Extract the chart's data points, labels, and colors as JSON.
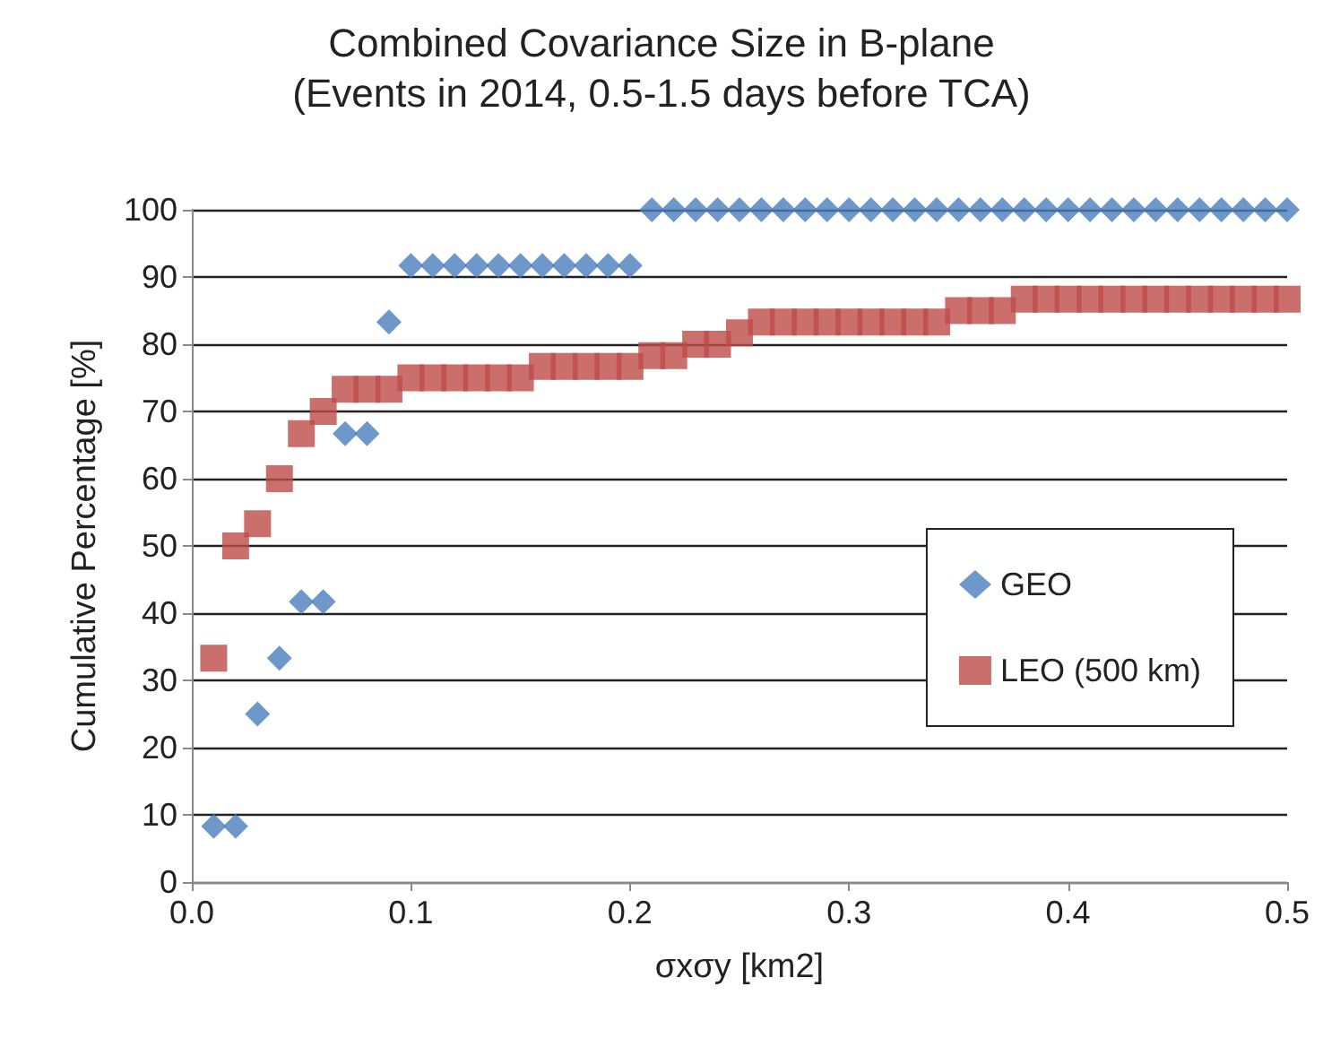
{
  "chart_data": {
    "type": "scatter",
    "title": "Combined Covariance Size in B-plane",
    "subtitle": "(Events in 2014, 0.5-1.5 days before TCA)",
    "xlabel": "σxσy [km2]",
    "ylabel": "Cumulative Percentage [%]",
    "x": [
      0.01,
      0.02,
      0.03,
      0.04,
      0.05,
      0.06,
      0.07,
      0.08,
      0.09,
      0.1,
      0.11,
      0.12,
      0.13,
      0.14,
      0.15,
      0.16,
      0.17,
      0.18,
      0.19,
      0.2,
      0.21,
      0.22,
      0.23,
      0.24,
      0.25,
      0.26,
      0.27,
      0.28,
      0.29,
      0.3,
      0.31,
      0.32,
      0.33,
      0.34,
      0.35,
      0.36,
      0.37,
      0.38,
      0.39,
      0.4,
      0.41,
      0.42,
      0.43,
      0.44,
      0.45,
      0.46,
      0.47,
      0.48,
      0.49,
      0.5
    ],
    "series": [
      {
        "name": "GEO",
        "color": "#4a7ebb",
        "marker": "diamond",
        "values": [
          8.3,
          8.3,
          25,
          33.3,
          41.7,
          41.7,
          66.7,
          66.7,
          83.3,
          91.7,
          91.7,
          91.7,
          91.7,
          91.7,
          91.7,
          91.7,
          91.7,
          91.7,
          91.7,
          91.7,
          100,
          100,
          100,
          100,
          100,
          100,
          100,
          100,
          100,
          100,
          100,
          100,
          100,
          100,
          100,
          100,
          100,
          100,
          100,
          100,
          100,
          100,
          100,
          100,
          100,
          100,
          100,
          100,
          100,
          100
        ]
      },
      {
        "name": "LEO (500 km)",
        "color": "#be4b48",
        "marker": "square",
        "values": [
          33.3,
          50,
          53.3,
          60,
          66.7,
          70,
          73.3,
          73.3,
          73.3,
          75,
          75,
          75,
          75,
          75,
          75,
          76.7,
          76.7,
          76.7,
          76.7,
          76.7,
          78.3,
          78.3,
          80,
          80,
          81.7,
          83.3,
          83.3,
          83.3,
          83.3,
          83.3,
          83.3,
          83.3,
          83.3,
          83.3,
          85,
          85,
          85,
          86.7,
          86.7,
          86.7,
          86.7,
          86.7,
          86.7,
          86.7,
          86.7,
          86.7,
          86.7,
          86.7,
          86.7,
          86.7
        ]
      }
    ],
    "xlim": [
      0,
      0.5
    ],
    "xticks": [
      {
        "value": 0,
        "label": "0.0"
      },
      {
        "value": 0.1,
        "label": "0.1"
      },
      {
        "value": 0.2,
        "label": "0.2"
      },
      {
        "value": 0.3,
        "label": "0.3"
      },
      {
        "value": 0.4,
        "label": "0.4"
      },
      {
        "value": 0.5,
        "label": "0.5"
      }
    ],
    "ylim": [
      0,
      100
    ],
    "yticks": [
      0,
      10,
      20,
      30,
      40,
      50,
      60,
      70,
      80,
      90,
      100
    ],
    "grid": "y",
    "legend": "right"
  }
}
